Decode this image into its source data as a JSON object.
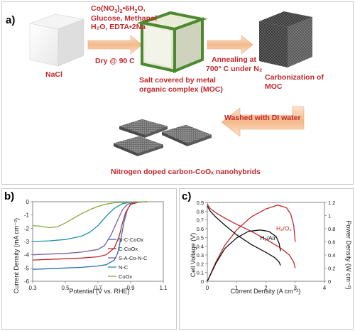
{
  "panel_a": {
    "label": "a)",
    "nacl": "NaCl",
    "reagents_line1": "Co(NO",
    "reagents_sub1": "3",
    "reagents_mid1": ")",
    "reagents_sub2": "2",
    "reagents_end1": "•6H",
    "reagents_sub3": "2",
    "reagents_tail1": "O,",
    "reagents_line2": "Glucose, Methanol",
    "reagents_line3": "H₂O, EDTA•2Na",
    "dry": "Dry @ 90 C",
    "salt_line1": "Salt covered by metal",
    "salt_line2": "organic complex (MOC)",
    "anneal_line1": "Annealing at",
    "anneal_line2": "700° C under N₂",
    "carbon_line1": "Carbonization of",
    "carbon_line2": "MOC",
    "washed": "Washed with DI water",
    "product": "Nitrogen doped carbon-CoOₓ nanohybrids"
  },
  "chart_data": [
    {
      "panel": "b)",
      "type": "line",
      "xlabel": "Potential (V vs. RHE)",
      "ylabel": "Current Density (mA cm⁻²)",
      "xlim": [
        0.3,
        1.1
      ],
      "ylim": [
        -6,
        0
      ],
      "xticks": [
        "0.3",
        "0.5",
        "0.7",
        "0.9",
        "1.1"
      ],
      "yticks": [
        "0",
        "-1",
        "-2",
        "-3",
        "-4",
        "-5",
        "-6"
      ],
      "legend_position": "right",
      "series": [
        {
          "name": "N-C-CoOx",
          "color": "#2e6fb7",
          "x": [
            0.3,
            0.4,
            0.5,
            0.6,
            0.7,
            0.75,
            0.8,
            0.82,
            0.84,
            0.86,
            0.88,
            0.9,
            0.93,
            1.0
          ],
          "y": [
            -5.1,
            -5.05,
            -5.0,
            -4.95,
            -4.85,
            -4.75,
            -4.4,
            -3.9,
            -2.8,
            -1.5,
            -0.6,
            -0.2,
            -0.05,
            0
          ]
        },
        {
          "name": "C-CoOx",
          "color": "#c0282c",
          "x": [
            0.3,
            0.4,
            0.5,
            0.6,
            0.7,
            0.75,
            0.8,
            0.83,
            0.85,
            0.87,
            0.9,
            0.95,
            1.0
          ],
          "y": [
            -4.4,
            -4.35,
            -4.3,
            -4.25,
            -4.15,
            -4.0,
            -3.5,
            -2.6,
            -1.6,
            -0.8,
            -0.2,
            -0.03,
            0
          ]
        },
        {
          "name": "S-A-Co-N-C",
          "color": "#7d5fa6",
          "x": [
            0.3,
            0.4,
            0.5,
            0.6,
            0.7,
            0.74,
            0.78,
            0.82,
            0.85,
            0.88,
            0.92,
            1.0
          ],
          "y": [
            -4.0,
            -3.95,
            -3.9,
            -3.8,
            -3.6,
            -3.3,
            -2.5,
            -1.4,
            -0.6,
            -0.2,
            -0.04,
            0
          ]
        },
        {
          "name": "N-C",
          "color": "#1f8fa8",
          "x": [
            0.3,
            0.4,
            0.5,
            0.6,
            0.65,
            0.7,
            0.75,
            0.8,
            0.85,
            0.9,
            1.0
          ],
          "y": [
            -3.0,
            -2.95,
            -2.85,
            -2.6,
            -2.3,
            -1.8,
            -1.1,
            -0.5,
            -0.15,
            -0.03,
            0
          ]
        },
        {
          "name": "CoOx",
          "color": "#8aa83c",
          "x": [
            0.3,
            0.35,
            0.4,
            0.45,
            0.5,
            0.55,
            0.6,
            0.65,
            0.7,
            0.75,
            0.8,
            0.9,
            1.0
          ],
          "y": [
            -1.8,
            -1.85,
            -1.95,
            -1.9,
            -1.6,
            -1.25,
            -0.9,
            -0.6,
            -0.35,
            -0.18,
            -0.08,
            -0.02,
            0
          ]
        }
      ]
    },
    {
      "panel": "c)",
      "type": "line",
      "xlabel": "Current Density (A cm⁻²)",
      "ylabel": "Cell Voltage (V)",
      "y2label": "Power Density (W cm⁻²)",
      "xlim": [
        0,
        4
      ],
      "ylim": [
        0,
        0.9
      ],
      "y2lim": [
        0,
        1.2
      ],
      "xticks": [
        "0",
        "1",
        "2",
        "3",
        "4"
      ],
      "yticks": [
        "0",
        "0.1",
        "0.2",
        "0.3",
        "0.4",
        "0.5",
        "0.6",
        "0.7",
        "0.8",
        "0.9"
      ],
      "y2ticks": [
        "0",
        "0.2",
        "0.4",
        "0.6",
        "0.8",
        "1",
        "1.2"
      ],
      "annotations": [
        "H₂/O₂",
        "H₂/Air"
      ],
      "series": [
        {
          "name": "H₂/O₂",
          "axis": "left",
          "color": "#c0282c",
          "x": [
            0,
            0.1,
            0.3,
            0.6,
            1,
            1.5,
            2,
            2.5,
            2.8,
            2.95,
            3.0
          ],
          "y": [
            0.88,
            0.83,
            0.78,
            0.72,
            0.65,
            0.57,
            0.48,
            0.38,
            0.3,
            0.22,
            0.15
          ]
        },
        {
          "name": "H₂/O₂",
          "axis": "right",
          "color": "#c0282c",
          "x": [
            0,
            0.3,
            0.6,
            1,
            1.5,
            2,
            2.4,
            2.7,
            2.85,
            2.95,
            3.0
          ],
          "y": [
            0,
            0.3,
            0.55,
            0.78,
            0.98,
            1.1,
            1.16,
            1.12,
            1.02,
            0.85,
            0.6
          ]
        },
        {
          "name": "H₂/Air",
          "axis": "left",
          "color": "#111111",
          "x": [
            0,
            0.1,
            0.3,
            0.6,
            1,
            1.5,
            2,
            2.3,
            2.45,
            2.5
          ],
          "y": [
            0.86,
            0.8,
            0.73,
            0.64,
            0.53,
            0.42,
            0.33,
            0.27,
            0.22,
            0.18
          ]
        },
        {
          "name": "H₂/Air",
          "axis": "right",
          "color": "#111111",
          "x": [
            0,
            0.3,
            0.6,
            1,
            1.4,
            1.8,
            2.1,
            2.35,
            2.45,
            2.5
          ],
          "y": [
            0,
            0.28,
            0.5,
            0.66,
            0.76,
            0.78,
            0.76,
            0.68,
            0.58,
            0.46
          ]
        }
      ]
    }
  ]
}
